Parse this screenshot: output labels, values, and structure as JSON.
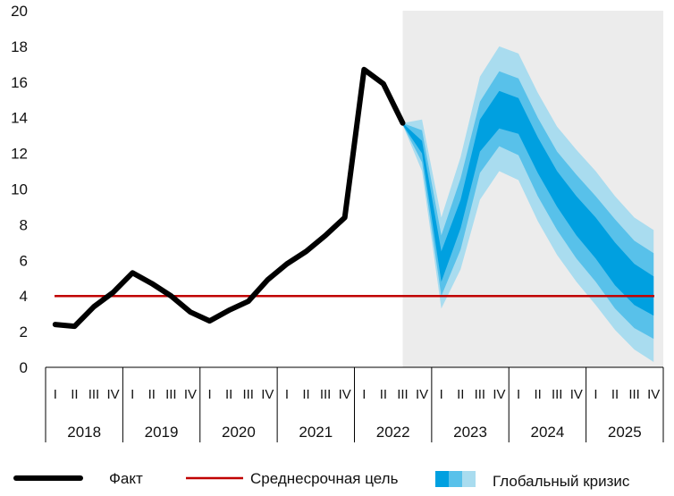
{
  "chart_data": {
    "type": "line",
    "y_axis": {
      "min": 0,
      "max": 20,
      "step": 2,
      "tick_labels": [
        "0",
        "2",
        "4",
        "6",
        "8",
        "10",
        "12",
        "14",
        "16",
        "18",
        "20"
      ]
    },
    "quarter_labels": [
      "I",
      "II",
      "III",
      "IV"
    ],
    "years": [
      "2018",
      "2019",
      "2020",
      "2021",
      "2022",
      "2023",
      "2024",
      "2025"
    ],
    "forecast_shaded_from": "2022 III",
    "series": [
      {
        "name": "Факт",
        "color": "#000000",
        "x": [
          "2018 I",
          "2018 II",
          "2018 III",
          "2018 IV",
          "2019 I",
          "2019 II",
          "2019 III",
          "2019 IV",
          "2020 I",
          "2020 II",
          "2020 III",
          "2020 IV",
          "2021 I",
          "2021 II",
          "2021 III",
          "2021 IV",
          "2022 I",
          "2022 II",
          "2022 III"
        ],
        "values": [
          2.4,
          2.3,
          3.4,
          4.2,
          5.3,
          4.7,
          4.0,
          3.1,
          2.6,
          3.2,
          3.7,
          4.9,
          5.8,
          6.5,
          7.4,
          8.4,
          16.7,
          15.9,
          13.7
        ]
      },
      {
        "name": "Среднесрочная цель",
        "color": "#c00000",
        "value": 4.0
      }
    ],
    "fan": {
      "name": "Глобальный кризис",
      "colors": [
        "#a9dcef",
        "#58c1ea",
        "#00a0e0"
      ],
      "x": [
        "2022 III",
        "2022 IV",
        "2023 I",
        "2023 II",
        "2023 III",
        "2023 IV",
        "2024 I",
        "2024 II",
        "2024 III",
        "2024 IV",
        "2025 I",
        "2025 II",
        "2025 III",
        "2025 IV"
      ],
      "bands": [
        {
          "lower": [
            13.6,
            11.0,
            3.3,
            5.5,
            9.4,
            11.0,
            10.5,
            8.2,
            6.3,
            4.8,
            3.5,
            2.1,
            1.0,
            0.3
          ],
          "upper": [
            13.7,
            13.9,
            8.4,
            11.8,
            16.3,
            18.0,
            17.6,
            15.4,
            13.5,
            12.2,
            11.0,
            9.6,
            8.4,
            7.7
          ]
        },
        {
          "lower": [
            13.6,
            11.5,
            4.0,
            6.6,
            10.9,
            12.4,
            11.9,
            9.6,
            7.7,
            6.1,
            4.8,
            3.3,
            2.2,
            1.6
          ],
          "upper": [
            13.7,
            13.3,
            7.4,
            10.6,
            14.9,
            16.6,
            16.2,
            14.0,
            12.1,
            10.8,
            9.6,
            8.3,
            7.1,
            6.4
          ]
        },
        {
          "lower": [
            13.6,
            12.0,
            4.8,
            7.8,
            12.1,
            13.4,
            13.1,
            10.9,
            9.0,
            7.4,
            6.1,
            4.6,
            3.5,
            2.9
          ],
          "upper": [
            13.7,
            12.7,
            6.5,
            9.4,
            13.9,
            15.5,
            15.1,
            12.9,
            11.0,
            9.6,
            8.4,
            7.0,
            5.8,
            5.1
          ]
        }
      ]
    },
    "legend": {
      "position": "bottom",
      "items": [
        "Факт",
        "Среднесрочная цель",
        "Глобальный кризис"
      ]
    }
  }
}
